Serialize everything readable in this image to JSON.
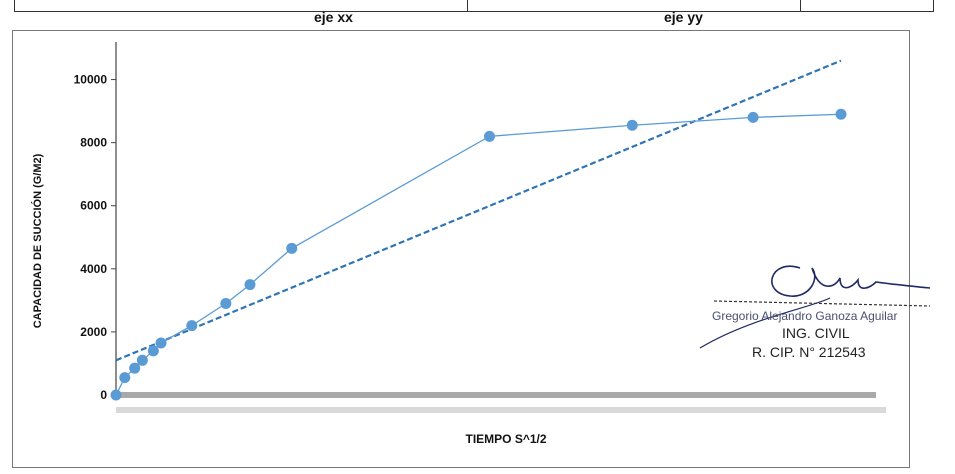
{
  "header": {
    "col_x_label": "eje xx",
    "col_y_label": "eje yy"
  },
  "chart_data": {
    "type": "scatter",
    "xlabel": "TIEMPO S^1/2",
    "ylabel": "CAPACIDAD DE SUCCIÓN (G/M2)",
    "ylim": [
      0,
      11000
    ],
    "xlim": [
      0,
      66
    ],
    "yticks": [
      "0",
      "2000",
      "4000",
      "6000",
      "8000",
      "10000"
    ],
    "grid": false,
    "series": [
      {
        "style": "markers-line",
        "color": "#5b9bd5",
        "x": [
          0,
          0.8,
          1.7,
          2.4,
          3.4,
          4.1,
          6.9,
          10.0,
          12.2,
          16.0,
          34.0,
          47.0,
          58.0,
          66.0
        ],
        "y": [
          0,
          550,
          850,
          1100,
          1400,
          1650,
          2200,
          2900,
          3500,
          4650,
          8200,
          8550,
          8800,
          8900
        ]
      },
      {
        "style": "dashed-trendline",
        "color": "#2e75b6",
        "x": [
          0,
          66
        ],
        "y": [
          1100,
          10600
        ]
      }
    ]
  },
  "signature": {
    "name": "Gregorio Alejandro Ganoza Aguilar",
    "title": "ING. CIVIL",
    "registration": "R. CIP. N° 212543"
  }
}
